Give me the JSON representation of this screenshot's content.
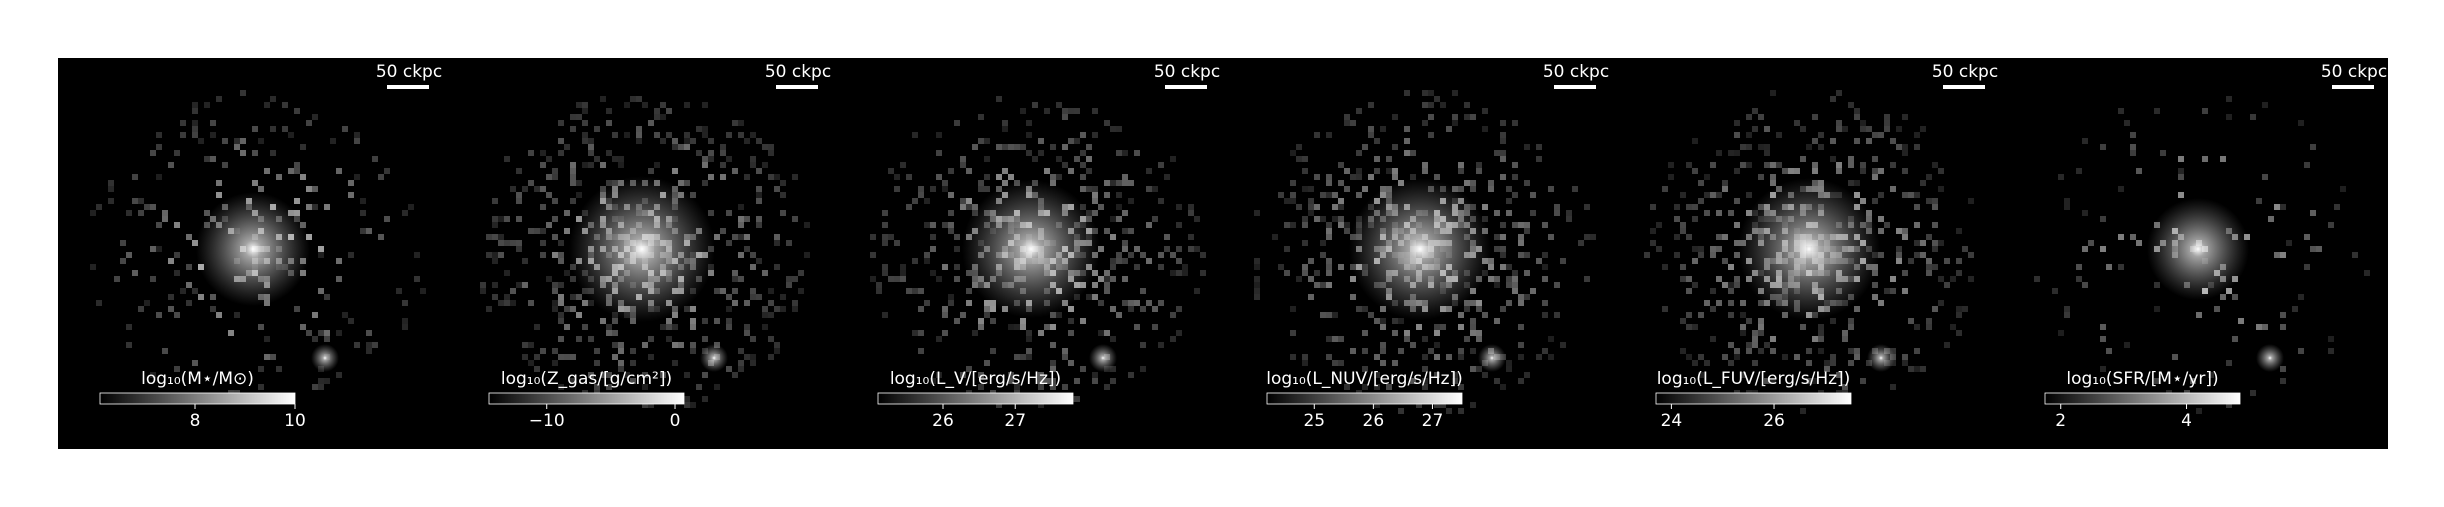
{
  "chart_data": [
    {
      "type": "image",
      "scale_bar": "50 ckpc",
      "colorbar_label": "log₁₀(M⋆/M⊙)",
      "colormap": "gray",
      "clim": [
        6.1,
        10
      ],
      "cticks": [
        8,
        10
      ]
    },
    {
      "type": "image",
      "scale_bar": "50 ckpc",
      "colorbar_label": "log₁₀(Z_gas/[g/cm²])",
      "colormap": "gray",
      "clim": [
        -14.5,
        0.7
      ],
      "cticks": [
        {
          "value": -10,
          "label": "−10"
        },
        0
      ]
    },
    {
      "type": "image",
      "scale_bar": "50 ckpc",
      "colorbar_label": "log₁₀(L_V/[erg/s/Hz])",
      "colormap": "gray",
      "clim": [
        25.1,
        27.8
      ],
      "cticks": [
        26,
        27
      ]
    },
    {
      "type": "image",
      "scale_bar": "50 ckpc",
      "colorbar_label": "log₁₀(L_NUV/[erg/s/Hz])",
      "colormap": "gray",
      "clim": [
        24.2,
        27.5
      ],
      "cticks": [
        25,
        26,
        27
      ]
    },
    {
      "type": "image",
      "scale_bar": "50 ckpc",
      "colorbar_label": "log₁₀(L_FUV/[erg/s/Hz])",
      "colormap": "gray",
      "clim": [
        23.7,
        27.5
      ],
      "cticks": [
        24,
        26
      ]
    },
    {
      "type": "image",
      "scale_bar": "50 ckpc",
      "colorbar_label": "log₁₀(SFR/[M⋆/yr])",
      "colormap": "gray",
      "clim": [
        1.75,
        4.85
      ],
      "cticks": [
        2,
        4
      ]
    }
  ]
}
